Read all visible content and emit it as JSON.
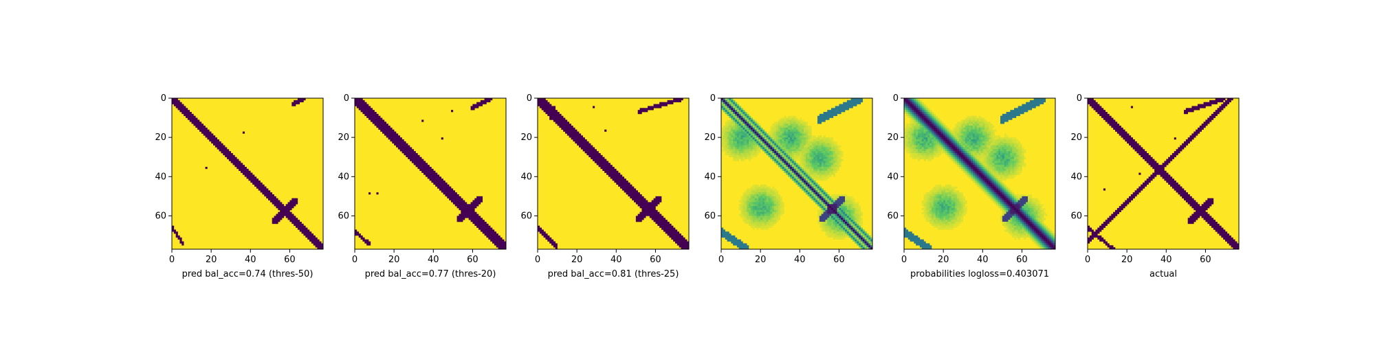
{
  "figure": {
    "colors": {
      "low": "#440154",
      "high": "#fde725",
      "colormap": "viridis"
    }
  },
  "chart_data": [
    {
      "type": "heatmap",
      "xlabel": "pred bal_acc=0.74 (thres-50)",
      "xticks": [
        0,
        20,
        40,
        60
      ],
      "yticks": [
        0,
        20,
        40,
        60
      ],
      "xlim": [
        0,
        77
      ],
      "ylim": [
        77,
        0
      ],
      "matrix_size": 77,
      "values": "binary",
      "features": {
        "diagonal_band": [
          0,
          77
        ],
        "diagonal_width": 2.2,
        "secondary_cross_center": [
          57,
          57
        ],
        "antidiagonal_top_right": [
          [
            62,
            2
          ],
          [
            66,
            0
          ]
        ],
        "antidiagonal_bottom_left": [
          [
            0,
            66
          ],
          [
            4,
            72
          ]
        ],
        "isolated_points": [
          [
            36,
            17
          ],
          [
            17,
            35
          ]
        ]
      }
    },
    {
      "type": "heatmap",
      "xlabel": "pred bal_acc=0.77 (thres-20)",
      "xticks": [
        0,
        20,
        40,
        60
      ],
      "yticks": [
        0,
        20,
        40,
        60
      ],
      "xlim": [
        0,
        77
      ],
      "ylim": [
        77,
        0
      ],
      "matrix_size": 77,
      "values": "binary",
      "features": {
        "diagonal_band": [
          0,
          77
        ],
        "diagonal_width": 3.0,
        "secondary_cross_center": [
          58,
          56
        ],
        "antidiagonal_top_right": [
          [
            60,
            4
          ],
          [
            68,
            0
          ]
        ],
        "antidiagonal_bottom_left": [
          [
            0,
            68
          ],
          [
            6,
            73
          ]
        ],
        "isolated_points": [
          [
            49,
            6
          ],
          [
            34,
            11
          ],
          [
            7,
            48
          ],
          [
            11,
            48
          ],
          [
            44,
            20
          ]
        ]
      }
    },
    {
      "type": "heatmap",
      "xlabel": "pred bal_acc=0.81 (thres-25)",
      "xticks": [
        0,
        20,
        40,
        60
      ],
      "yticks": [
        0,
        20,
        40,
        60
      ],
      "xlim": [
        0,
        77
      ],
      "ylim": [
        77,
        0
      ],
      "matrix_size": 77,
      "values": "binary",
      "features": {
        "diagonal_band": [
          0,
          77
        ],
        "diagonal_width": 3.5,
        "secondary_cross_center": [
          56,
          56
        ],
        "antidiagonal_top_right": [
          [
            52,
            6
          ],
          [
            72,
            0
          ]
        ],
        "antidiagonal_bottom_left": [
          [
            0,
            66
          ],
          [
            8,
            74
          ]
        ],
        "isolated_points": [
          [
            8,
            4
          ],
          [
            6,
            10
          ],
          [
            18,
            15
          ],
          [
            34,
            16
          ],
          [
            28,
            4
          ]
        ]
      }
    },
    {
      "type": "heatmap",
      "xlabel": "",
      "xticks": [
        0,
        20,
        40,
        60
      ],
      "yticks": [
        0,
        20,
        40,
        60
      ],
      "xlim": [
        0,
        77
      ],
      "ylim": [
        77,
        0
      ],
      "matrix_size": 77,
      "values": "probability",
      "features": {
        "diagonal_band": [
          0,
          77
        ],
        "diagonal_width": 1.0,
        "parallel_offsets": [
          4,
          -4
        ],
        "secondary_cross_center": [
          56,
          56
        ],
        "antidiagonal_top_right": [
          [
            50,
            10
          ],
          [
            70,
            0
          ]
        ],
        "antidiagonal_bottom_left": [
          [
            0,
            68
          ],
          [
            12,
            76
          ]
        ],
        "diffuse_regions": [
          [
            10,
            20
          ],
          [
            35,
            20
          ],
          [
            50,
            30
          ],
          [
            20,
            55
          ],
          [
            60,
            60
          ]
        ]
      }
    },
    {
      "type": "heatmap",
      "xlabel": "probabilities logloss=0.403071",
      "xticks": [
        0,
        20,
        40,
        60
      ],
      "yticks": [
        0,
        20,
        40,
        60
      ],
      "xlim": [
        0,
        77
      ],
      "ylim": [
        77,
        0
      ],
      "matrix_size": 77,
      "values": "probability",
      "features": {
        "diagonal_band": [
          0,
          77
        ],
        "diagonal_width": 3.0,
        "secondary_cross_center": [
          56,
          56
        ],
        "antidiagonal_top_right": [
          [
            50,
            10
          ],
          [
            70,
            0
          ]
        ],
        "antidiagonal_bottom_left": [
          [
            0,
            68
          ],
          [
            12,
            76
          ]
        ],
        "diffuse_regions": [
          [
            10,
            20
          ],
          [
            35,
            20
          ],
          [
            50,
            30
          ],
          [
            20,
            55
          ],
          [
            60,
            60
          ]
        ]
      }
    },
    {
      "type": "heatmap",
      "xlabel": "actual",
      "xticks": [
        0,
        20,
        40,
        60
      ],
      "yticks": [
        0,
        20,
        40,
        60
      ],
      "xlim": [
        0,
        77
      ],
      "ylim": [
        77,
        0
      ],
      "matrix_size": 77,
      "values": "binary",
      "features": {
        "diagonal_band": [
          0,
          77
        ],
        "diagonal_width": 2.5,
        "secondary_cross_center": [
          57,
          57
        ],
        "antidiagonal_center": [
          36,
          36
        ],
        "antidiagonal_top_right": [
          [
            50,
            6
          ],
          [
            68,
            0
          ]
        ],
        "antidiagonal_bottom_left": [
          [
            0,
            66
          ],
          [
            12,
            76
          ]
        ],
        "isolated_points": [
          [
            22,
            4
          ],
          [
            14,
            12
          ],
          [
            44,
            20
          ],
          [
            8,
            46
          ],
          [
            26,
            38
          ]
        ]
      }
    }
  ]
}
